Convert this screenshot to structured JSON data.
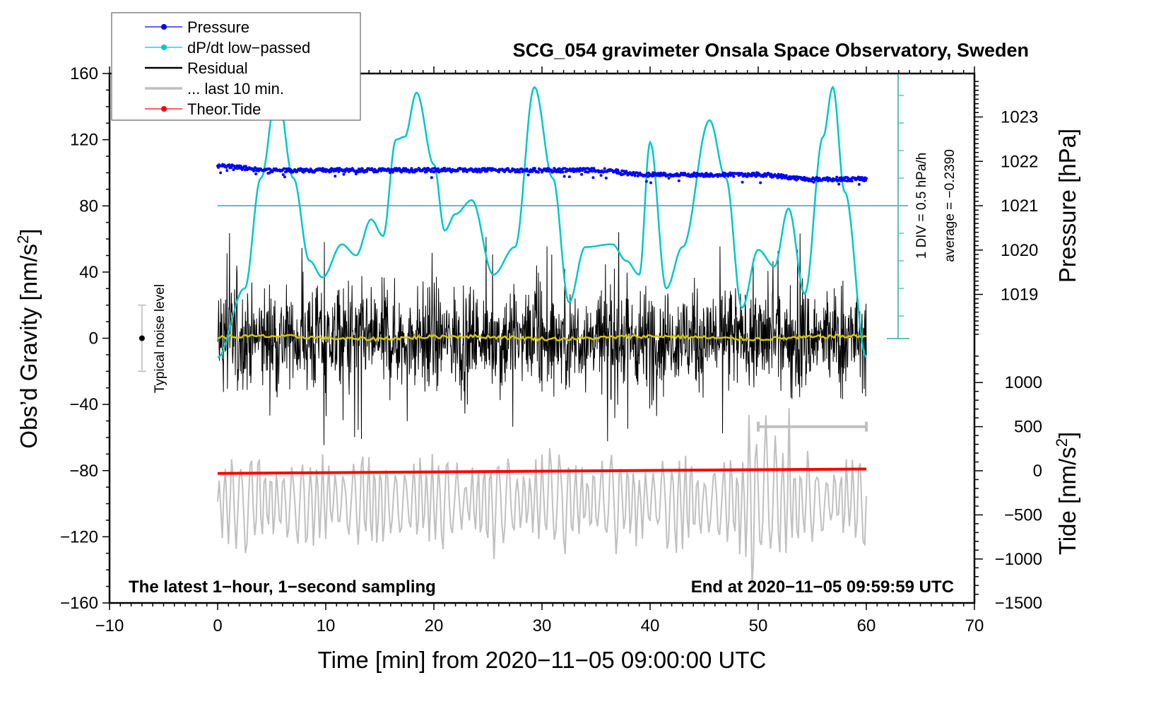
{
  "chart_data": {
    "type": "line",
    "title": "SCG_054 gravimeter Onsala Space Observatory, Sweden",
    "xlabel": "Time [min] from 2020−11−05 09:00:00 UTC",
    "ylabel_left": "Obs’d Gravity [nm/s²]",
    "ylabel_right_pressure": "Pressure [hPa]",
    "ylabel_right_tide": "Tide [nm/s²]",
    "xlim": [
      -10,
      70
    ],
    "ylim_left": [
      -160,
      160
    ],
    "x_ticks": [
      -10,
      0,
      10,
      20,
      30,
      40,
      50,
      60,
      70
    ],
    "x_tick_labels": [
      "−10",
      "0",
      "10",
      "20",
      "30",
      "40",
      "50",
      "60",
      "70"
    ],
    "y_ticks_left": [
      160,
      120,
      80,
      40,
      0,
      -40,
      -80,
      -120,
      -160
    ],
    "y_tick_labels_left": [
      "160",
      "120",
      "80",
      "40",
      "0",
      "−40",
      "−80",
      "−120",
      "−160"
    ],
    "pressure_axis": {
      "ticks": [
        1023,
        1022,
        1021,
        1020,
        1019
      ],
      "labels": [
        "1023",
        "1022",
        "1021",
        "1020",
        "1019"
      ]
    },
    "tide_axis": {
      "ticks": [
        1000,
        500,
        0,
        -500,
        -1000,
        -1500
      ],
      "labels": [
        "1000",
        "500",
        "0",
        "−500",
        "−1000",
        "−1500"
      ]
    },
    "legend": {
      "placement": "top-left",
      "entries": [
        {
          "label": "Pressure",
          "color": "#0000ff",
          "marker": true
        },
        {
          "label": "dP/dt low−passed",
          "color": "#00c8c8",
          "marker": true
        },
        {
          "label": "Residual",
          "color": "#000000",
          "marker": false
        },
        {
          "label": "... last 10 min.",
          "color": "#c0c0c0",
          "marker": false
        },
        {
          "label": "Theor.Tide",
          "color": "#ff0000",
          "marker": true
        }
      ]
    },
    "annotations": {
      "bottom_left": "The latest 1−hour, 1−second sampling",
      "bottom_right": "End at 2020−11−05 09:59:59 UTC",
      "noise_label": "Typical noise level",
      "dpdt_scale": "1 DIV = 0.5 hPa/h",
      "dpdt_average": "average = −0.2390"
    },
    "noise_level": {
      "x": -7,
      "center": 0,
      "half_range": 20
    },
    "colors": {
      "pressure": "#0000ff",
      "dpdt": "#00c8c8",
      "dpdt_axis": "#5fbfbf",
      "residual": "#000000",
      "residual_smooth": "#d4c800",
      "last10": "#c0c0c0",
      "tide": "#ff0000"
    },
    "series": [
      {
        "name": "Pressure",
        "axis": "pressure",
        "style": "dots",
        "x": [
          0,
          5,
          10,
          15,
          20,
          25,
          30,
          35,
          40,
          45,
          50,
          55,
          60
        ],
        "values": [
          1021.9,
          1021.8,
          1021.8,
          1021.8,
          1021.8,
          1021.8,
          1021.8,
          1021.8,
          1021.7,
          1021.7,
          1021.7,
          1021.6,
          1021.6
        ]
      },
      {
        "name": "dP/dt low-passed",
        "axis": "dpdt_div",
        "note": "values in DIV units relative to average line (1 DIV = 0.5 hPa/h)",
        "x": [
          0,
          2.5,
          4,
          5.5,
          7,
          8.5,
          9.7,
          11.5,
          12.8,
          14.2,
          15.3,
          16.5,
          17.3,
          18.4,
          20,
          21,
          22,
          23.5,
          25.5,
          27.5,
          29.3,
          31,
          32.5,
          34,
          36.5,
          37.8,
          39,
          40,
          41.5,
          43,
          45.5,
          47,
          48.5,
          50,
          51.5,
          52.8,
          54.3,
          56,
          56.9,
          58,
          60
        ],
        "values": [
          -5.5,
          -3,
          1.0,
          4.2,
          1.0,
          -2.0,
          -2.6,
          -1.4,
          -1.8,
          -0.5,
          -1.1,
          2.4,
          2.5,
          4.1,
          1.5,
          -0.9,
          -0.3,
          0.2,
          -2.5,
          -1.5,
          4.3,
          1.0,
          -3.5,
          -1.5,
          -1.4,
          -2.0,
          -2.5,
          2.3,
          -3.0,
          -1.5,
          3.1,
          1.0,
          -3.7,
          -1.6,
          -2.2,
          -0.1,
          -3.2,
          2.5,
          4.3,
          0.5,
          -5.5
        ]
      },
      {
        "name": "Residual",
        "axis": "left",
        "style": "noise",
        "x_range": [
          0,
          60
        ],
        "amplitude_typical": 30,
        "amplitude_max": 65
      },
      {
        "name": "Residual smoothed",
        "axis": "left",
        "x_range": [
          0,
          60
        ],
        "value_approx": 0
      },
      {
        "name": "... last 10 min.",
        "axis": "tide",
        "style": "oscillation",
        "x_range": [
          0,
          60
        ],
        "amplitude_typical": 600,
        "amplitude_max": 1500
      },
      {
        "name": "Theor.Tide",
        "axis": "tide",
        "x": [
          0,
          60
        ],
        "values": [
          -30,
          20
        ]
      }
    ],
    "last10_bar": {
      "x_start": 50,
      "x_end": 60,
      "tide_value": 500
    }
  }
}
